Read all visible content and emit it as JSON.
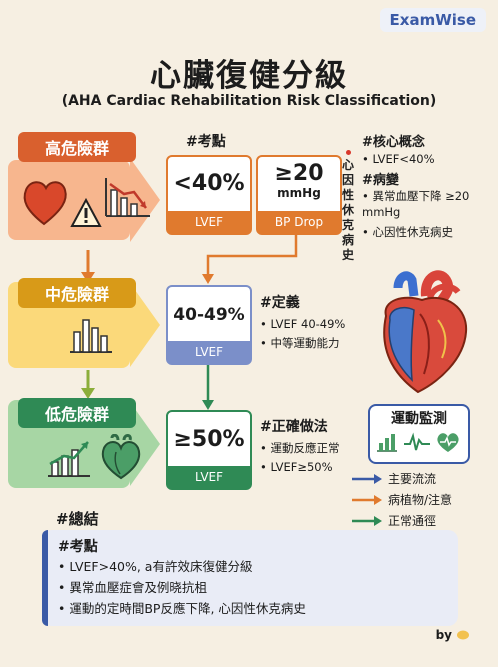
{
  "brand": "ExamWise",
  "title": "心臟復健分級",
  "subtitle": "(AHA Cardiac Rehabilitation Risk Classification)",
  "tiers": [
    {
      "label": "高危險群",
      "color": "#d9602e"
    },
    {
      "label": "中危險群",
      "color": "#d89a18"
    },
    {
      "label": "低危險群",
      "color": "#2f8a55"
    }
  ],
  "exam_points_tag": "#考點",
  "lvef_high": {
    "value": "<40%",
    "label": "LVEF"
  },
  "bp_drop": {
    "value": "≥20",
    "unit": "mmHg",
    "label": "BP Drop"
  },
  "vertical_note": "心因性休克病史",
  "core": {
    "tag": "#核心概念",
    "items": [
      "LVEF<40%"
    ],
    "sub_tag": "#病變",
    "sub_items": [
      "異常血壓下降 ≥20 mmHg",
      "心因性休克病史"
    ]
  },
  "lvef_mid": {
    "value": "40-49%",
    "label": "LVEF"
  },
  "definition": {
    "tag": "#定義",
    "items": [
      "LVEF 40-49%",
      "中等運動能力"
    ]
  },
  "lvef_low": {
    "value": "≥50%",
    "label": "LVEF"
  },
  "correct": {
    "tag": "#正確做法",
    "items": [
      "運動反應正常",
      "LVEF≥50%"
    ]
  },
  "monitor": {
    "title": "運動監測",
    "icons": [
      "bar-chart-icon",
      "ecg-wave-icon",
      "heart-pulse-icon"
    ]
  },
  "legend": [
    {
      "label": "主要流流",
      "color": "#3a5aa6"
    },
    {
      "label": "病植物/注意",
      "color": "#e07a2e"
    },
    {
      "label": "正常通徑",
      "color": "#2f8a55"
    }
  ],
  "summary_tag": "#總結",
  "summary": {
    "tag": "#考點",
    "items": [
      "LVEF>40%, a有許效床復健分級",
      "異常血壓症會及例晓抗柤",
      "運動的定時間BP反應下降, 心因性休克病史"
    ]
  },
  "footer": "by"
}
